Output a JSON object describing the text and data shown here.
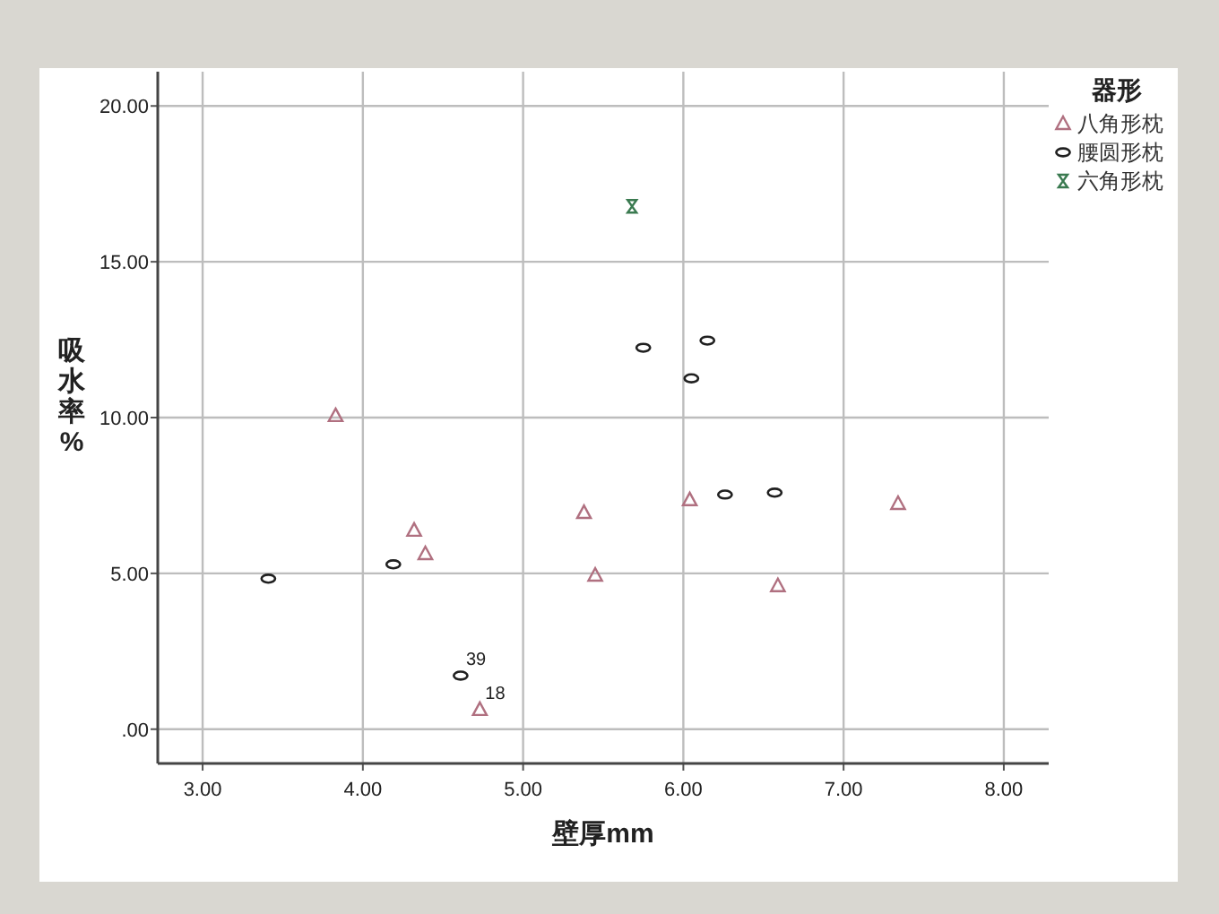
{
  "chart_data": {
    "type": "scatter",
    "xlabel": "壁厚mm",
    "ylabel": "吸水率%",
    "legend_title": "器形",
    "xlim": [
      2.72,
      8.28
    ],
    "ylim": [
      -1.1,
      21.1
    ],
    "xticks": [
      {
        "value": 3,
        "label": "3.00"
      },
      {
        "value": 4,
        "label": "4.00"
      },
      {
        "value": 5,
        "label": "5.00"
      },
      {
        "value": 6,
        "label": "6.00"
      },
      {
        "value": 7,
        "label": "7.00"
      },
      {
        "value": 8,
        "label": "8.00"
      }
    ],
    "yticks": [
      {
        "value": 0,
        "label": ".00"
      },
      {
        "value": 5,
        "label": "5.00"
      },
      {
        "value": 10,
        "label": "10.00"
      },
      {
        "value": 15,
        "label": "15.00"
      },
      {
        "value": 20,
        "label": "20.00"
      }
    ],
    "grid": true,
    "legend": "top right",
    "series": [
      {
        "name": "八角形枕",
        "color": "#b07080",
        "marker": "triangle",
        "x": [
          3.83,
          4.32,
          4.39,
          5.38,
          5.45,
          4.73,
          6.04,
          6.59,
          7.34
        ],
        "values": [
          10.06,
          6.38,
          5.63,
          6.95,
          4.94,
          0.63,
          7.36,
          4.6,
          7.24
        ]
      },
      {
        "name": "腰圆形枕",
        "color": "#202020",
        "marker": "circle",
        "x": [
          3.41,
          4.19,
          4.61,
          5.75,
          6.15,
          6.05,
          6.26,
          6.57
        ],
        "values": [
          4.83,
          5.29,
          1.72,
          12.24,
          12.47,
          11.26,
          7.53,
          7.59
        ]
      },
      {
        "name": "六角形枕",
        "color": "#3a7a50",
        "x": [
          5.68
        ],
        "values": [
          16.78
        ]
      }
    ],
    "annotations": [
      {
        "text": "39",
        "x": 4.61,
        "y": 1.72
      },
      {
        "text": "18",
        "x": 4.73,
        "y": 0.63
      }
    ]
  }
}
